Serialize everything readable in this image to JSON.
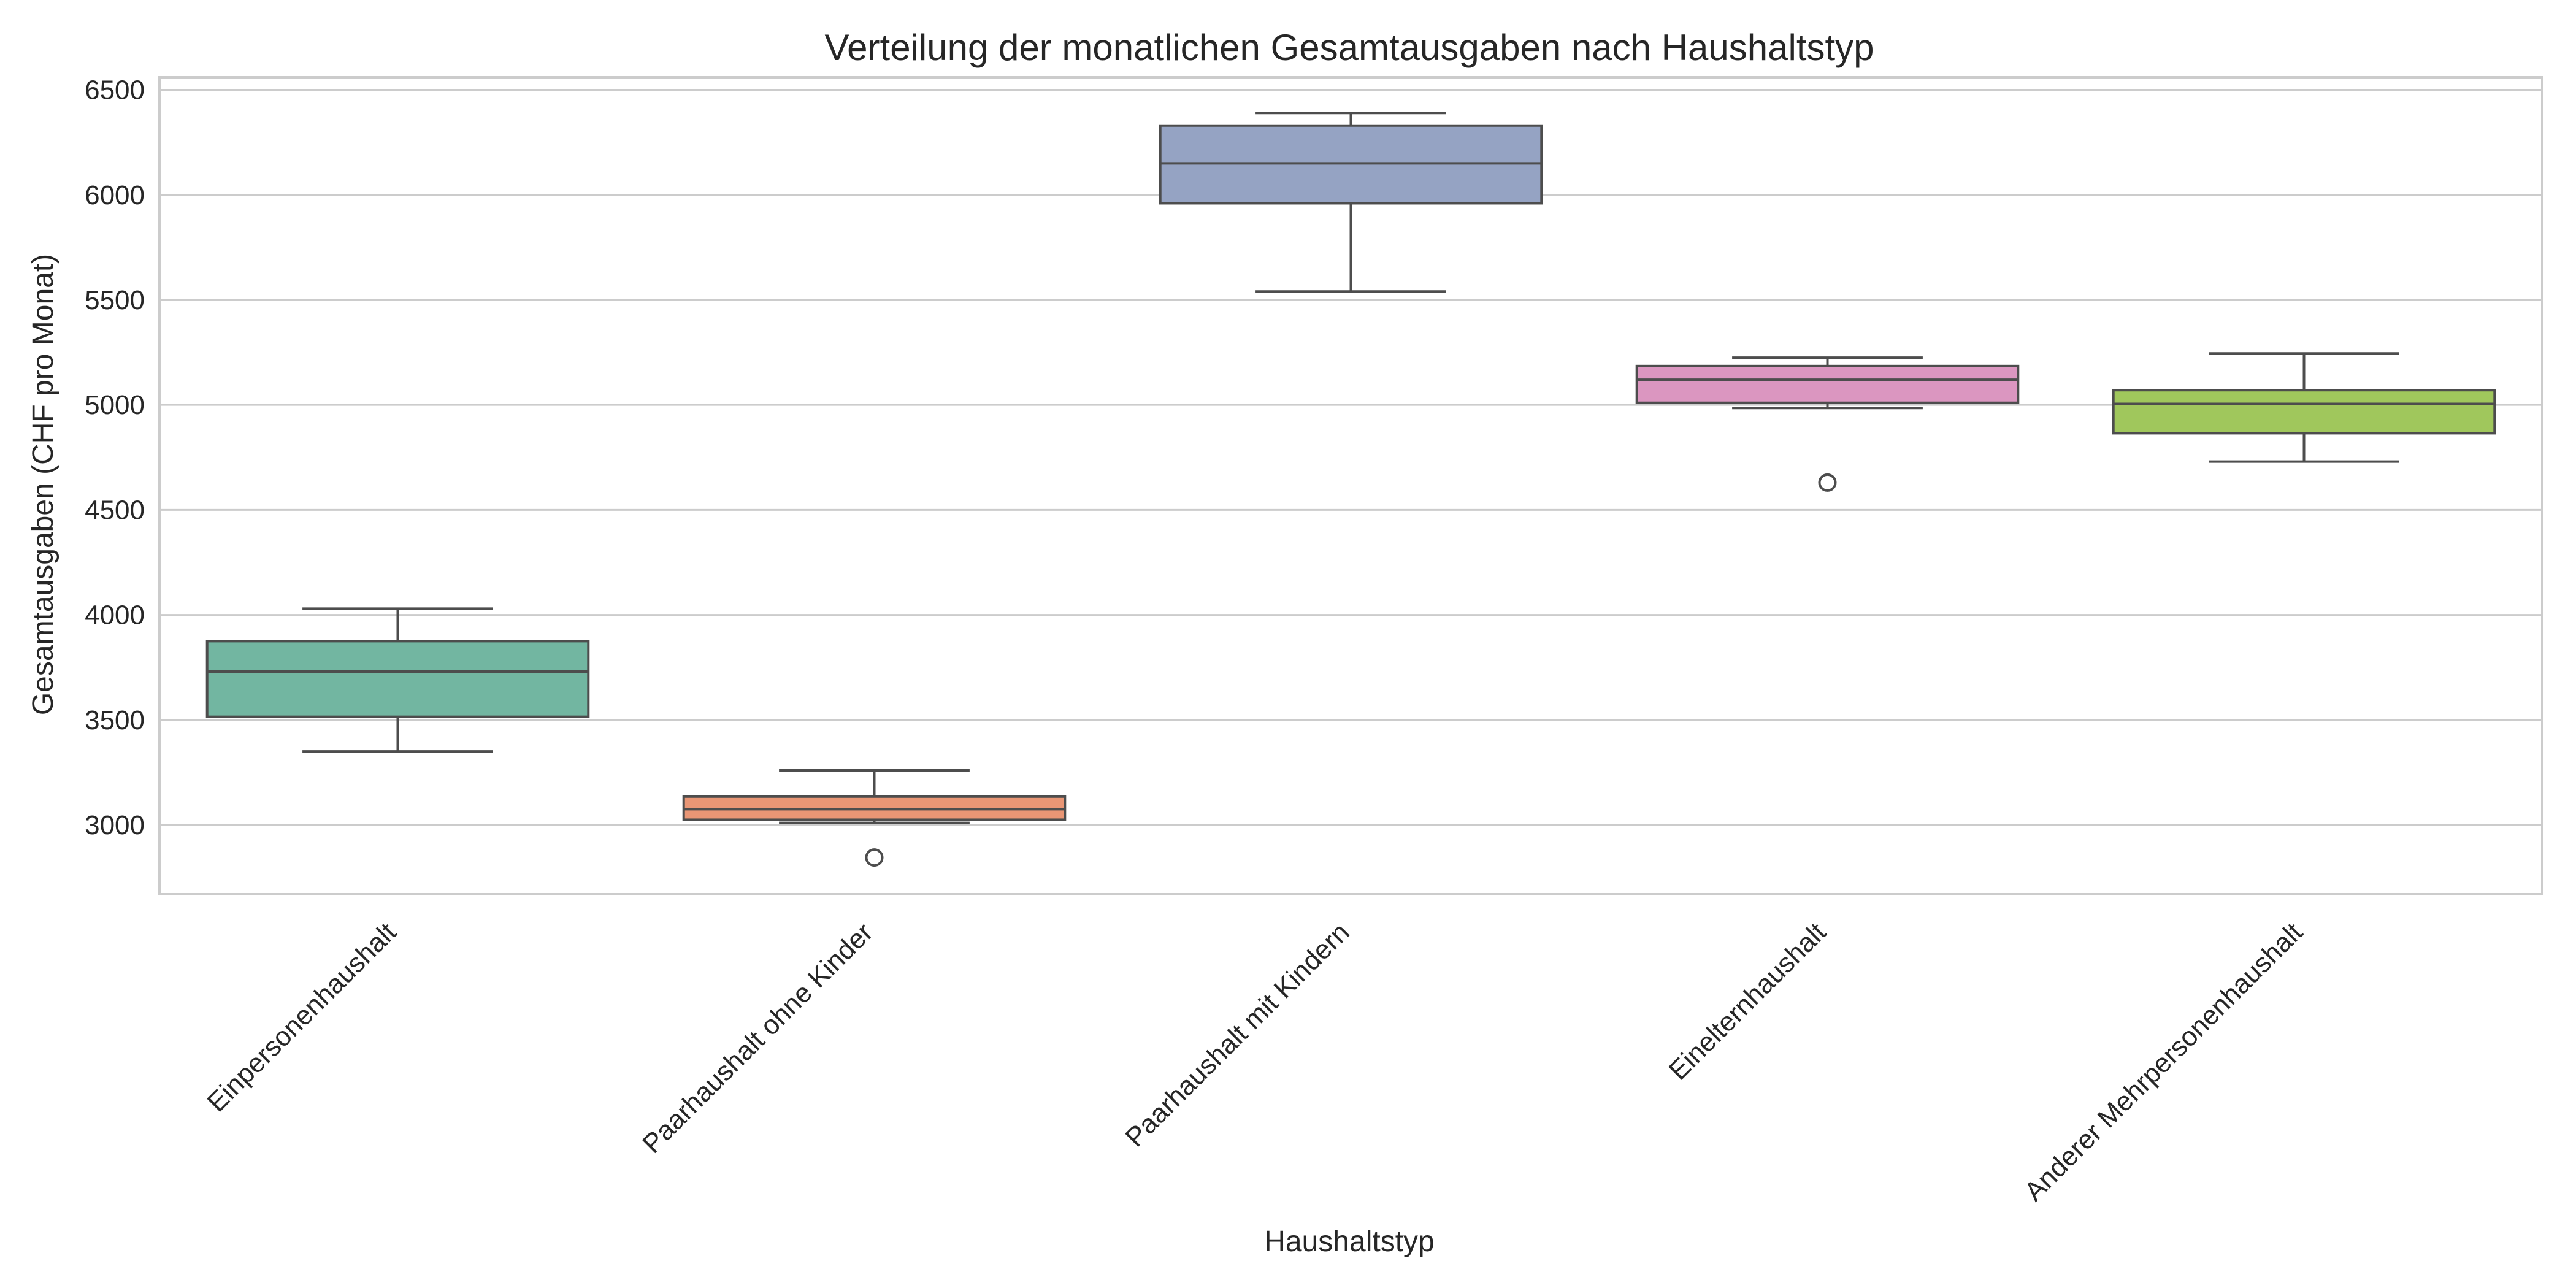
{
  "chart_data": {
    "type": "box",
    "title": "Verteilung der monatlichen Gesamtausgaben nach Haushaltstyp",
    "xlabel": "Haushaltstyp",
    "ylabel": "Gesamtausgaben (CHF pro Monat)",
    "ylim": [
      2670,
      6560
    ],
    "yticks": [
      3000,
      3500,
      4000,
      4500,
      5000,
      5500,
      6000,
      6500
    ],
    "grid": true,
    "categories": [
      "Einpersonenhaushalt",
      "Paarhaushalt ohne Kinder",
      "Paarhaushalt mit Kindern",
      "Einelternhaushalt",
      "Anderer Mehrpersonenhaushalt"
    ],
    "boxes": [
      {
        "category": "Einpersonenhaushalt",
        "whisker_low": 3350,
        "q1": 3515,
        "median": 3730,
        "q3": 3875,
        "whisker_high": 4030,
        "outliers": [],
        "color": "#72b6a1"
      },
      {
        "category": "Paarhaushalt ohne Kinder",
        "whisker_low": 3010,
        "q1": 3025,
        "median": 3075,
        "q3": 3135,
        "whisker_high": 3260,
        "outliers": [
          2845
        ],
        "color": "#e99675"
      },
      {
        "category": "Paarhaushalt mit Kindern",
        "whisker_low": 5540,
        "q1": 5960,
        "median": 6150,
        "q3": 6330,
        "whisker_high": 6390,
        "outliers": [],
        "color": "#95a3c3"
      },
      {
        "category": "Einelternhaushalt",
        "whisker_low": 4985,
        "q1": 5010,
        "median": 5120,
        "q3": 5185,
        "whisker_high": 5225,
        "outliers": [
          4630
        ],
        "color": "#db96c0"
      },
      {
        "category": "Anderer Mehrpersonenhaushalt",
        "whisker_low": 4730,
        "q1": 4865,
        "median": 5005,
        "q3": 5070,
        "whisker_high": 5245,
        "outliers": [],
        "color": "#a0c75c"
      }
    ]
  }
}
